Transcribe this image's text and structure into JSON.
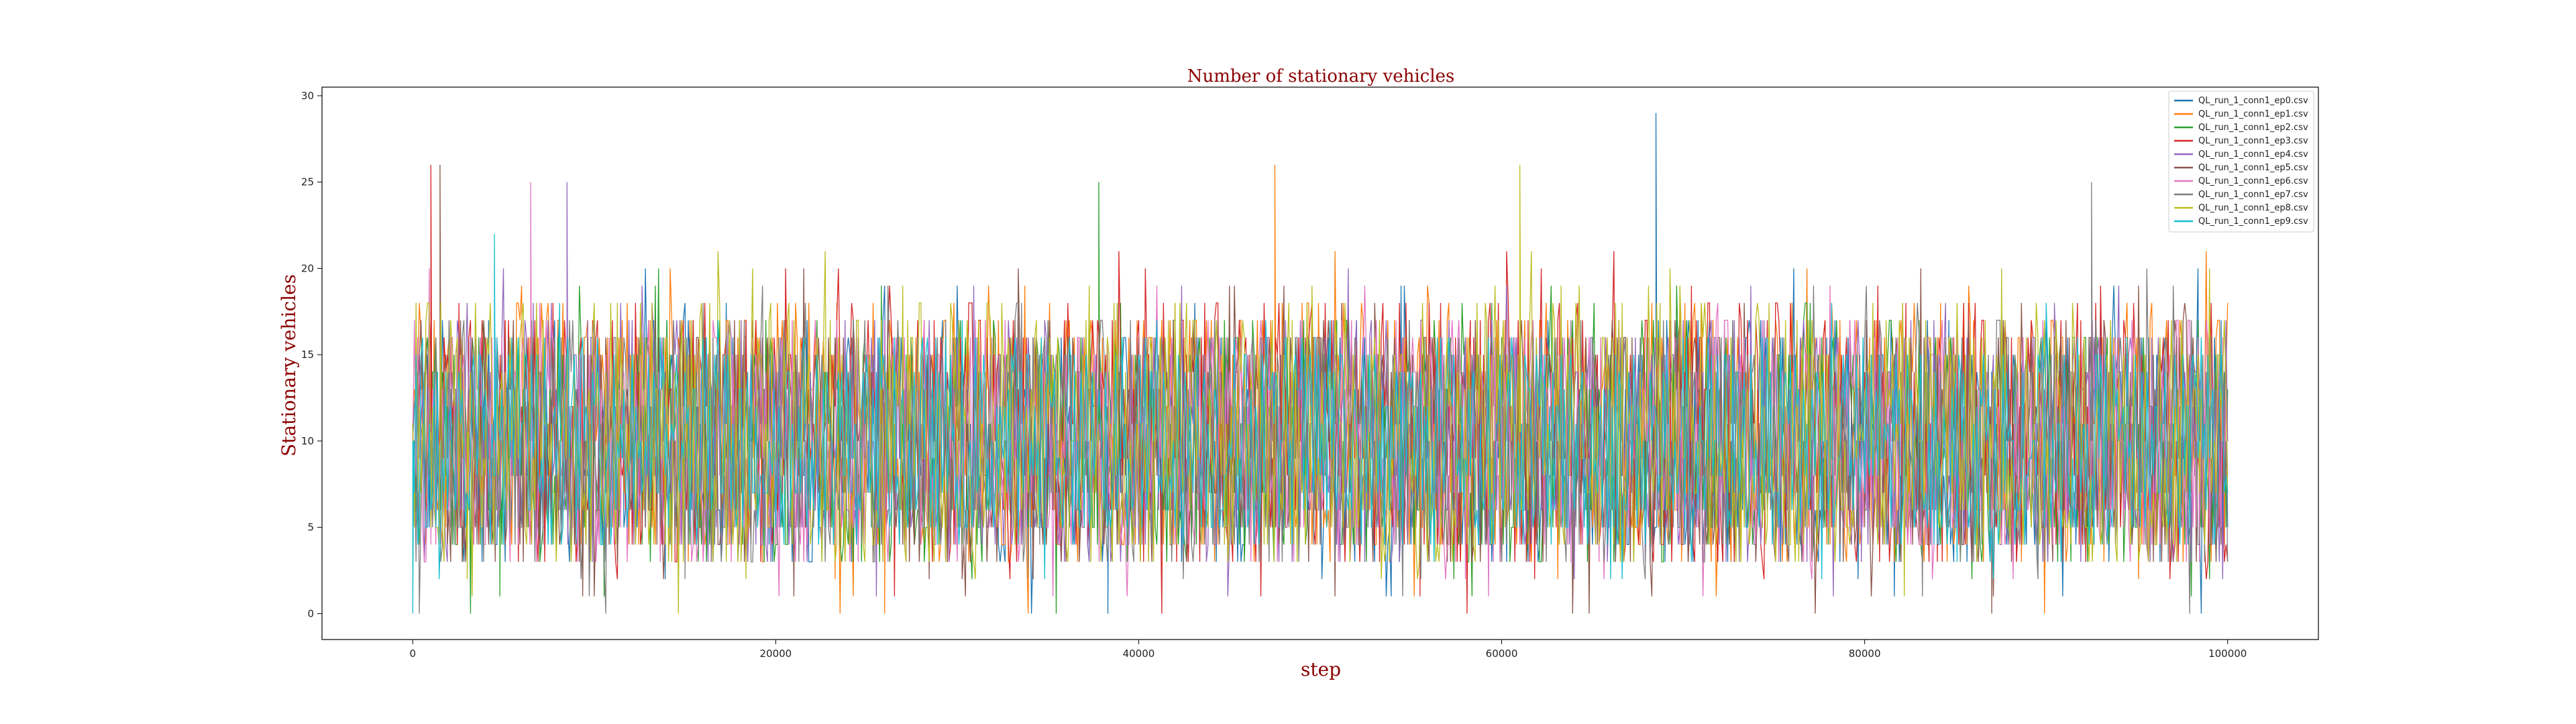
{
  "chart_data": {
    "type": "line",
    "title": "Number of stationary vehicles",
    "xlabel": "step",
    "ylabel": "Stationary vehicles",
    "xlim": [
      -5000,
      105000
    ],
    "ylim": [
      -1.5,
      30.5
    ],
    "xticks": [
      0,
      20000,
      40000,
      60000,
      80000,
      100000
    ],
    "yticks": [
      0,
      5,
      10,
      15,
      20,
      25,
      30
    ],
    "grid": false,
    "legend_position": "top-right",
    "x_range": [
      0,
      100000
    ],
    "series": [
      {
        "name": "QL_run_1_conn1_ep0.csv",
        "color": "#1f77b4",
        "typical_range": [
          3,
          17
        ],
        "peak": {
          "x": 68500,
          "y": 29
        },
        "min": {
          "x": 38300,
          "y": 0
        }
      },
      {
        "name": "QL_run_1_conn1_ep1.csv",
        "color": "#ff7f0e",
        "typical_range": [
          3,
          18
        ],
        "peak": {
          "x": 47500,
          "y": 26
        },
        "min": {
          "x": 26000,
          "y": 0
        }
      },
      {
        "name": "QL_run_1_conn1_ep2.csv",
        "color": "#2ca02c",
        "typical_range": [
          3,
          17
        ],
        "peak": {
          "x": 37800,
          "y": 25
        },
        "min": {
          "x": 4800,
          "y": 1
        }
      },
      {
        "name": "QL_run_1_conn1_ep3.csv",
        "color": "#d62728",
        "typical_range": [
          3,
          18
        ],
        "peak": {
          "x": 1000,
          "y": 26
        },
        "min": {
          "x": 55500,
          "y": 1
        }
      },
      {
        "name": "QL_run_1_conn1_ep4.csv",
        "color": "#9467bd",
        "typical_range": [
          3,
          17
        ],
        "peak": {
          "x": 8500,
          "y": 25
        },
        "min": {
          "x": 64000,
          "y": 2
        }
      },
      {
        "name": "QL_run_1_conn1_ep5.csv",
        "color": "#8c564b",
        "typical_range": [
          3,
          17
        ],
        "peak": {
          "x": 1500,
          "y": 26
        },
        "min": {
          "x": 87000,
          "y": 0
        }
      },
      {
        "name": "QL_run_1_conn1_ep6.csv",
        "color": "#e377c2",
        "typical_range": [
          3,
          17
        ],
        "peak": {
          "x": 6500,
          "y": 25
        },
        "min": {
          "x": 58000,
          "y": 2
        }
      },
      {
        "name": "QL_run_1_conn1_ep7.csv",
        "color": "#7f7f7f",
        "typical_range": [
          3,
          17
        ],
        "peak": {
          "x": 92500,
          "y": 25
        },
        "min": {
          "x": 15000,
          "y": 2
        }
      },
      {
        "name": "QL_run_1_conn1_ep8.csv",
        "color": "#bcbd22",
        "typical_range": [
          3,
          18
        ],
        "peak": {
          "x": 61000,
          "y": 26
        },
        "min": {
          "x": 3000,
          "y": 2
        }
      },
      {
        "name": "QL_run_1_conn1_ep9.csv",
        "color": "#17becf",
        "typical_range": [
          4,
          16
        ],
        "peak": {
          "x": 4500,
          "y": 22
        },
        "min": {
          "x": 0,
          "y": 0
        }
      }
    ]
  }
}
